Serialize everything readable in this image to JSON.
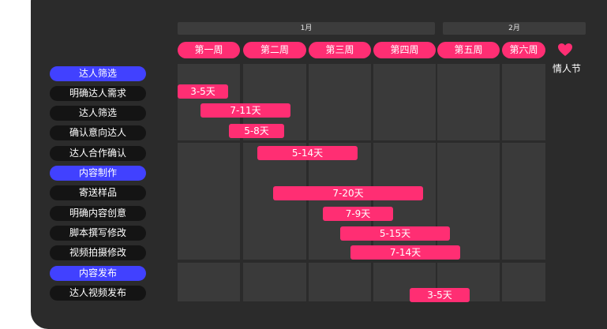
{
  "months": [
    "1月",
    "2月"
  ],
  "weeks": [
    "第一周",
    "第二周",
    "第三周",
    "第四周",
    "第五周",
    "第六周"
  ],
  "valentine": {
    "label": "情人节",
    "icon": "heart-icon"
  },
  "tasks": [
    {
      "label": "达人筛选",
      "section": true
    },
    {
      "label": "明确达人需求",
      "duration": "3-5天"
    },
    {
      "label": "达人筛选",
      "duration": "7-11天"
    },
    {
      "label": "确认意向达人",
      "duration": "5-8天"
    },
    {
      "label": "达人合作确认",
      "duration": "5-14天"
    },
    {
      "label": "内容制作",
      "section": true
    },
    {
      "label": "寄送样品",
      "duration": "7-20天"
    },
    {
      "label": "明确内容创意",
      "duration": "7-9天"
    },
    {
      "label": "脚本撰写修改",
      "duration": "5-15天"
    },
    {
      "label": "视频拍摄修改",
      "duration": "7-14天"
    },
    {
      "label": "内容发布",
      "section": true
    },
    {
      "label": "达人视频发布",
      "duration": "3-5天"
    }
  ],
  "colors": {
    "accent": "#ff2e73",
    "section": "#4141ff",
    "panel": "#2b2b2b"
  }
}
